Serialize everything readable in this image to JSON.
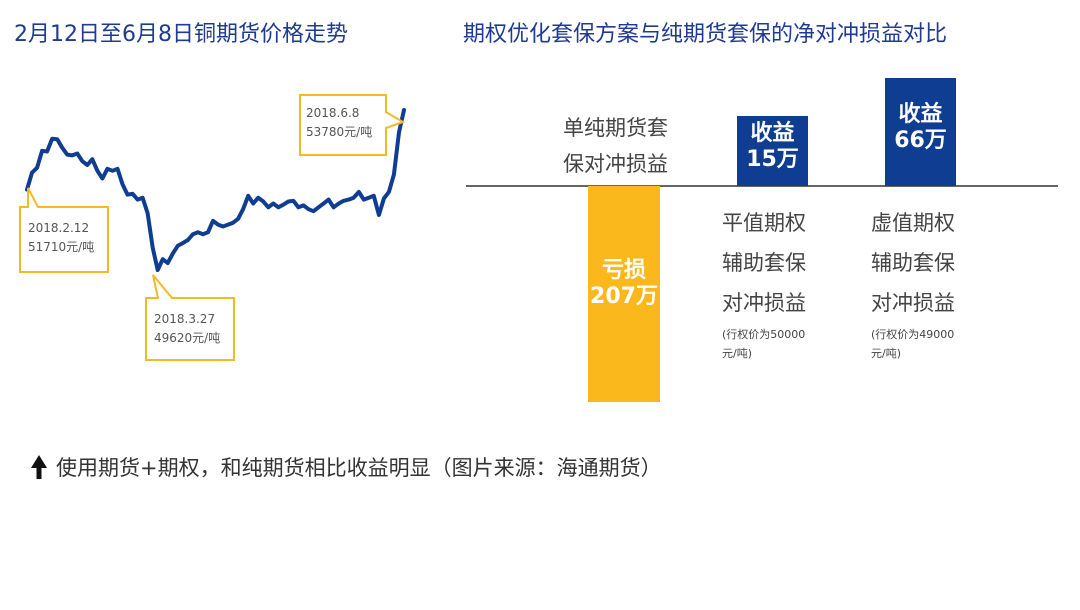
{
  "left_title": "2月12日至6月8日铜期货价格走势",
  "right_title": "期权优化套保方案与纯期货套保的净对冲损益对比",
  "line_chart": {
    "callouts": [
      {
        "date": "2018.2.12",
        "value": "51710元/吨"
      },
      {
        "date": "2018.3.27",
        "value": "49620元/吨"
      },
      {
        "date": "2018.6.8",
        "value": "53780元/吨"
      }
    ]
  },
  "chart_data": [
    {
      "type": "line",
      "title": "2月12日至6月8日铜期货价格走势",
      "xlabel": "",
      "ylabel": "",
      "grid": false,
      "x": [
        "2018-02-12",
        "2018-02-13",
        "2018-02-14",
        "2018-02-22",
        "2018-02-23",
        "2018-02-26",
        "2018-02-27",
        "2018-02-28",
        "2018-03-01",
        "2018-03-02",
        "2018-03-05",
        "2018-03-06",
        "2018-03-07",
        "2018-03-08",
        "2018-03-09",
        "2018-03-12",
        "2018-03-13",
        "2018-03-14",
        "2018-03-15",
        "2018-03-16",
        "2018-03-19",
        "2018-03-20",
        "2018-03-21",
        "2018-03-22",
        "2018-03-23",
        "2018-03-26",
        "2018-03-27",
        "2018-03-28",
        "2018-03-29",
        "2018-03-30",
        "2018-04-02",
        "2018-04-03",
        "2018-04-04",
        "2018-04-09",
        "2018-04-10",
        "2018-04-11",
        "2018-04-12",
        "2018-04-13",
        "2018-04-16",
        "2018-04-17",
        "2018-04-18",
        "2018-04-19",
        "2018-04-20",
        "2018-04-23",
        "2018-04-24",
        "2018-04-25",
        "2018-04-26",
        "2018-04-27",
        "2018-05-02",
        "2018-05-03",
        "2018-05-04",
        "2018-05-07",
        "2018-05-08",
        "2018-05-09",
        "2018-05-10",
        "2018-05-11",
        "2018-05-14",
        "2018-05-15",
        "2018-05-16",
        "2018-05-17",
        "2018-05-18",
        "2018-05-21",
        "2018-05-22",
        "2018-05-23",
        "2018-05-24",
        "2018-05-25",
        "2018-05-28",
        "2018-05-29",
        "2018-05-30",
        "2018-05-31",
        "2018-06-01",
        "2018-06-04",
        "2018-06-05",
        "2018-06-06",
        "2018-06-07",
        "2018-06-08"
      ],
      "series": [
        {
          "values": [
            51710,
            52150,
            52280,
            52720,
            52700,
            53030,
            53020,
            52800,
            52620,
            52600,
            52650,
            52450,
            52350,
            52500,
            52200,
            52000,
            52250,
            52200,
            52250,
            51850,
            51580,
            51600,
            51450,
            51500,
            51100,
            50200,
            49620,
            49900,
            49800,
            50050,
            50250,
            50320,
            50400,
            50550,
            50600,
            50550,
            50600,
            50900,
            50800,
            50750,
            50800,
            50850,
            50950,
            51200,
            51550,
            51350,
            51500,
            51400,
            51250,
            51350,
            51250,
            51320,
            51400,
            51420,
            51250,
            51300,
            51200,
            51150,
            51250,
            51350,
            51450,
            51250,
            51350,
            51420,
            51450,
            51500,
            51650,
            51450,
            51500,
            51550,
            51050,
            51480,
            51650,
            52100,
            53200,
            53780
          ]
        }
      ],
      "ylim": [
        49000,
        54200
      ]
    },
    {
      "type": "bar",
      "title": "期权优化套保方案与纯期货套保的净对冲损益对比",
      "categories": [
        "单纯期货套保对冲损益",
        "平值期权辅助套保对冲损益",
        "虚值期权辅助套保对冲损益"
      ],
      "values": [
        -207,
        15,
        66
      ],
      "unit": "万",
      "colors": [
        "#fbb81c",
        "#0f3d91",
        "#0f3d91"
      ]
    }
  ],
  "bars": {
    "futures": {
      "label_line1": "单纯期货套",
      "label_line2": "保对冲损益",
      "bar_line1": "亏损",
      "bar_line2": "207万"
    },
    "atm": {
      "bar_line1": "收益",
      "bar_line2": "15万",
      "label_line1": "平值期权",
      "label_line2": "辅助套保",
      "label_line3": "对冲损益",
      "note_line1": "(行权价为50000",
      "note_line2": "元/吨)"
    },
    "otm": {
      "bar_line1": "收益",
      "bar_line2": "66万",
      "label_line1": "虚值期权",
      "label_line2": "辅助套保",
      "label_line3": "对冲损益",
      "note_line1": "(行权价为49000",
      "note_line2": "元/吨)"
    }
  },
  "footer": {
    "text": "使用期货+期权，和纯期货相比收益明显（图片来源：海通期货）",
    "arrow_icon": "up-arrow-icon"
  },
  "colors": {
    "title": "#1f3a93",
    "line": "#0f3d91",
    "callout_border": "#f5b928",
    "loss_bar": "#fbb81c",
    "gain_bar": "#0f3d91"
  }
}
